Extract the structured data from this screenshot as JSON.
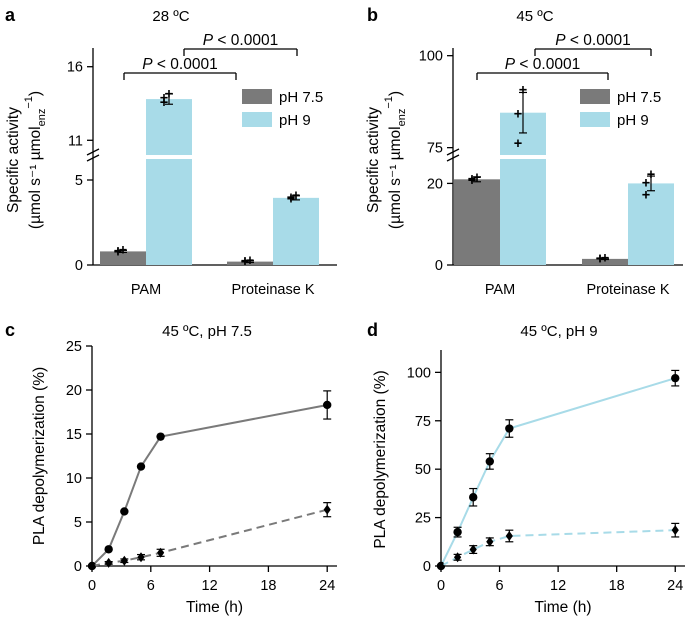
{
  "figure": {
    "colors": {
      "ph75": "#7a7a7a",
      "ph9": "#a8dbe8",
      "gray_line": "#7a7a7a",
      "blue_line": "#a8dbe8",
      "marker": "#000000"
    }
  },
  "chart_data": [
    {
      "panel": "a",
      "type": "bar",
      "title": "28 ºC",
      "ylabel_line1": "Specific activity",
      "ylabel_line2": "(µmol s⁻¹ µmol",
      "ylabel_sub": "enz",
      "ylabel_sup": "−1",
      "ylabel_close": ")",
      "categories": [
        "PAM",
        "Proteinase K"
      ],
      "axis_break": true,
      "lower_range": [
        0,
        6
      ],
      "upper_range": [
        10,
        17
      ],
      "lower_ticks": [
        "0",
        "5"
      ],
      "upper_ticks": [
        "11",
        "16"
      ],
      "legend": [
        "pH 7.5",
        "pH 9"
      ],
      "series": [
        {
          "name": "pH 7.5",
          "values": [
            0.8,
            0.2
          ],
          "errors": [
            0.06,
            0.05
          ],
          "points": [
            [
              0.74,
              0.8,
              0.85
            ],
            [
              0.16,
              0.2,
              0.23
            ]
          ]
        },
        {
          "name": "pH 9",
          "values": [
            13.8,
            3.95
          ],
          "errors": [
            0.35,
            0.12
          ],
          "points": [
            [
              13.55,
              13.85,
              14.1
            ],
            [
              3.85,
              3.95,
              4.05
            ]
          ]
        }
      ],
      "significance": [
        {
          "text": "P < 0.0001",
          "pair": "PAM pH 7.5 vs Proteinase K pH 7.5"
        },
        {
          "text": "P < 0.0001",
          "pair": "PAM pH 9 vs Proteinase K pH 9"
        }
      ]
    },
    {
      "panel": "b",
      "type": "bar",
      "title": "45 ºC",
      "ylabel_line1": "Specific activity",
      "ylabel_line2": "(µmol s⁻¹ µmol",
      "ylabel_sub": "enz",
      "ylabel_sup": "−1",
      "ylabel_close": ")",
      "categories": [
        "PAM",
        "Proteinase K"
      ],
      "axis_break": true,
      "lower_range": [
        0,
        25
      ],
      "upper_range": [
        73,
        101
      ],
      "lower_ticks": [
        "0",
        "20"
      ],
      "upper_ticks": [
        "75",
        "100"
      ],
      "legend": [
        "pH 7.5",
        "pH 9"
      ],
      "series": [
        {
          "name": "pH 7.5",
          "values": [
            21,
            1.5
          ],
          "errors": [
            0.6,
            0.15
          ],
          "points": [
            [
              20.6,
              21.0,
              21.3
            ],
            [
              1.4,
              1.5,
              1.6
            ]
          ]
        },
        {
          "name": "pH 9",
          "values": [
            84.5,
            20
          ],
          "errors": [
            5.5,
            1.8
          ],
          "points": [
            [
              76,
              84,
              90.5
            ],
            [
              17,
              20,
              22
            ]
          ]
        }
      ],
      "significance": [
        {
          "text": "P < 0.0001",
          "pair": "PAM pH 7.5 vs Proteinase K pH 7.5"
        },
        {
          "text": "P < 0.0001",
          "pair": "PAM pH 9 vs Proteinase K pH 9"
        }
      ]
    },
    {
      "panel": "c",
      "type": "line",
      "title": "45 ºC, pH 7.5",
      "xlabel": "Time (h)",
      "ylabel": "PLA depolymerization (%)",
      "xlim": [
        0,
        25
      ],
      "ylim": [
        0,
        25
      ],
      "xticks": [
        0,
        6,
        12,
        18,
        24
      ],
      "yticks": [
        0,
        5,
        10,
        15,
        20,
        25
      ],
      "series": [
        {
          "name": "PAM",
          "marker": "circle",
          "dash": false,
          "color": "#7a7a7a",
          "x": [
            0,
            1.7,
            3.3,
            5,
            7,
            24
          ],
          "y": [
            0,
            1.9,
            6.2,
            11.3,
            14.7,
            18.3
          ],
          "err": [
            0,
            0,
            0,
            0,
            0,
            1.6
          ]
        },
        {
          "name": "Proteinase K",
          "marker": "diamond",
          "dash": true,
          "color": "#7a7a7a",
          "x": [
            0,
            1.7,
            3.3,
            5,
            7,
            24
          ],
          "y": [
            0,
            0.35,
            0.6,
            1.0,
            1.5,
            6.4
          ],
          "err": [
            0,
            0.15,
            0.2,
            0.3,
            0.4,
            0.8
          ]
        }
      ]
    },
    {
      "panel": "d",
      "type": "line",
      "title": "45 ºC, pH 9",
      "xlabel": "Time (h)",
      "ylabel": "PLA depolymerization (%)",
      "xlim": [
        0,
        25
      ],
      "ylim": [
        0,
        110
      ],
      "xticks": [
        0,
        6,
        12,
        18,
        24
      ],
      "yticks": [
        0,
        25,
        50,
        75,
        100
      ],
      "series": [
        {
          "name": "PAM",
          "marker": "circle",
          "dash": false,
          "color": "#a8dbe8",
          "x": [
            0,
            1.7,
            3.3,
            5,
            7,
            24
          ],
          "y": [
            0,
            17.5,
            35.5,
            54,
            71,
            97
          ],
          "err": [
            0,
            2.5,
            4.5,
            4,
            4.5,
            4
          ]
        },
        {
          "name": "Proteinase K",
          "marker": "diamond",
          "dash": true,
          "color": "#a8dbe8",
          "x": [
            0,
            1.7,
            3.3,
            5,
            7,
            24
          ],
          "y": [
            0,
            4.5,
            8.5,
            12.5,
            15.5,
            18.5
          ],
          "err": [
            0,
            1.5,
            2,
            2,
            3,
            3.5
          ]
        }
      ]
    }
  ]
}
